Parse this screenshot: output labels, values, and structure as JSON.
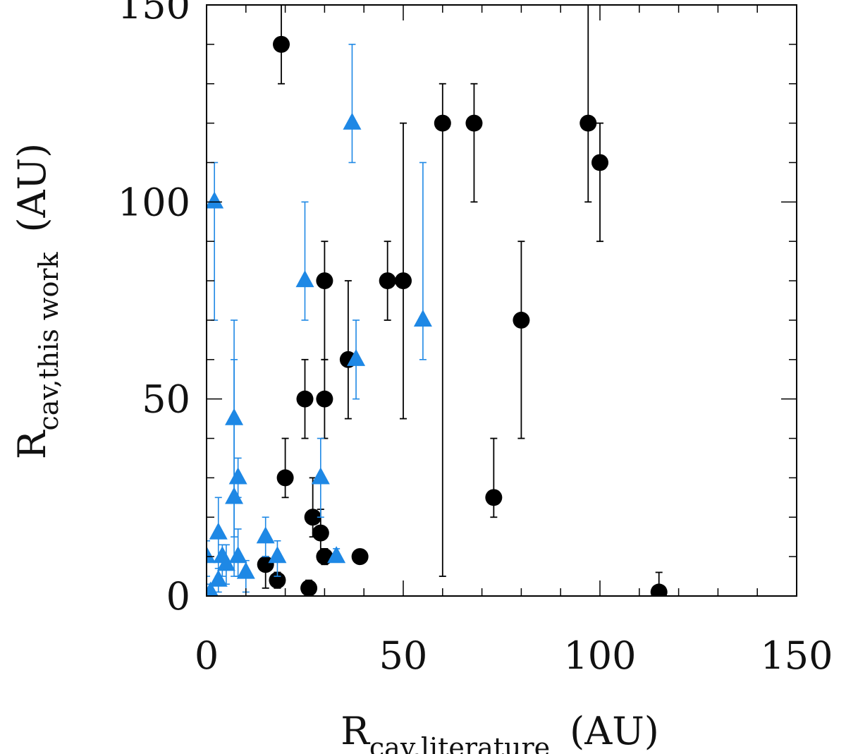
{
  "chart_data": {
    "type": "scatter",
    "xlabel": {
      "main": "R",
      "sub": "cav,literature",
      "unit": "(AU)"
    },
    "ylabel": {
      "main": "R",
      "sub": "cav,this work",
      "unit": "(AU)"
    },
    "xlim": [
      0,
      150
    ],
    "ylim": [
      0,
      150
    ],
    "xticks": [
      0,
      50,
      100,
      150
    ],
    "yticks": [
      0,
      50,
      100,
      150
    ],
    "xtick_labels": [
      "0",
      "50",
      "100",
      "150"
    ],
    "ytick_labels": [
      "0",
      "50",
      "100",
      "150"
    ],
    "grid": false,
    "series": [
      {
        "name": "black circles",
        "marker": "circle",
        "color": "#000000",
        "points": [
          {
            "x": 19,
            "y": 140,
            "lo": 130,
            "hi": 150
          },
          {
            "x": 60,
            "y": 120,
            "lo": 5,
            "hi": 130
          },
          {
            "x": 68,
            "y": 120,
            "lo": 100,
            "hi": 130
          },
          {
            "x": 97,
            "y": 120,
            "lo": 100,
            "hi": 150
          },
          {
            "x": 100,
            "y": 110,
            "lo": 90,
            "hi": 120
          },
          {
            "x": 30,
            "y": 80,
            "lo": 60,
            "hi": 90
          },
          {
            "x": 46,
            "y": 80,
            "lo": 70,
            "hi": 90
          },
          {
            "x": 50,
            "y": 80,
            "lo": 45,
            "hi": 120
          },
          {
            "x": 80,
            "y": 70,
            "lo": 40,
            "hi": 90
          },
          {
            "x": 36,
            "y": 60,
            "lo": 45,
            "hi": 80
          },
          {
            "x": 25,
            "y": 50,
            "lo": 40,
            "hi": 60
          },
          {
            "x": 30,
            "y": 50,
            "lo": 40,
            "hi": 60
          },
          {
            "x": 20,
            "y": 30,
            "lo": 25,
            "hi": 40
          },
          {
            "x": 73,
            "y": 25,
            "lo": 20,
            "hi": 40
          },
          {
            "x": 27,
            "y": 20,
            "lo": 15,
            "hi": 30
          },
          {
            "x": 29,
            "y": 16,
            "lo": 10,
            "hi": 22
          },
          {
            "x": 30,
            "y": 10,
            "lo": 8,
            "hi": 12
          },
          {
            "x": 39,
            "y": 10,
            "lo": 9,
            "hi": 11
          },
          {
            "x": 15,
            "y": 8,
            "lo": 2,
            "hi": 10
          },
          {
            "x": 18,
            "y": 4,
            "lo": 2,
            "hi": 6
          },
          {
            "x": 26,
            "y": 2,
            "lo": 0,
            "hi": 4
          },
          {
            "x": 115,
            "y": 1,
            "lo": 0,
            "hi": 6
          }
        ]
      },
      {
        "name": "blue triangles",
        "marker": "triangle",
        "color": "#1e88e5",
        "points": [
          {
            "x": 37,
            "y": 120,
            "lo": 110,
            "hi": 140
          },
          {
            "x": 2,
            "y": 100,
            "lo": 70,
            "hi": 110
          },
          {
            "x": 25,
            "y": 80,
            "lo": 70,
            "hi": 100
          },
          {
            "x": 55,
            "y": 70,
            "lo": 60,
            "hi": 110
          },
          {
            "x": 38,
            "y": 60,
            "lo": 50,
            "hi": 70
          },
          {
            "x": 7,
            "y": 45,
            "lo": 15,
            "hi": 70
          },
          {
            "x": 8,
            "y": 30,
            "lo": 25,
            "hi": 35
          },
          {
            "x": 7,
            "y": 25,
            "lo": 5,
            "hi": 60
          },
          {
            "x": 29,
            "y": 30,
            "lo": 20,
            "hi": 40
          },
          {
            "x": 3,
            "y": 16,
            "lo": 5,
            "hi": 25
          },
          {
            "x": 15,
            "y": 15,
            "lo": 10,
            "hi": 20
          },
          {
            "x": 0,
            "y": 10,
            "lo": 5,
            "hi": 14
          },
          {
            "x": 4,
            "y": 10,
            "lo": 5,
            "hi": 13
          },
          {
            "x": 8,
            "y": 10,
            "lo": 5,
            "hi": 17
          },
          {
            "x": 18,
            "y": 10,
            "lo": 5,
            "hi": 14
          },
          {
            "x": 33,
            "y": 10,
            "lo": 9,
            "hi": 12
          },
          {
            "x": 5,
            "y": 8,
            "lo": 3,
            "hi": 13
          },
          {
            "x": 10,
            "y": 6,
            "lo": 1,
            "hi": 9
          },
          {
            "x": 3,
            "y": 4,
            "lo": 1,
            "hi": 7
          },
          {
            "x": 1,
            "y": 1,
            "lo": 0,
            "hi": 3
          }
        ]
      }
    ]
  }
}
